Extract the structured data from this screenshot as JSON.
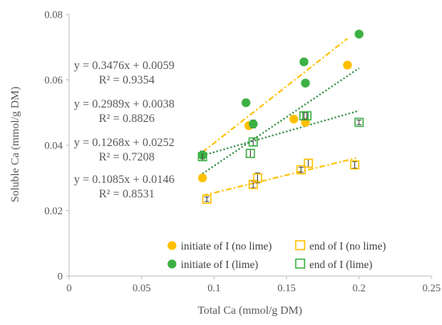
{
  "chart_data": {
    "type": "scatter",
    "xlabel": "Total Ca (mmol/g DM)",
    "ylabel": "Soluble Ca (mmol/g DM)",
    "xlim": [
      0,
      0.25
    ],
    "ylim": [
      0,
      0.08
    ],
    "x_ticks": [
      "0",
      "0.05",
      "0.1",
      "0.15",
      "0.2",
      "0.25"
    ],
    "y_ticks": [
      "0",
      "0.02",
      "0.04",
      "0.06",
      "0.08"
    ],
    "grid": false,
    "legend_position": "bottom-right",
    "colors": {
      "orange": "#FFC000",
      "green": "#3CB043",
      "dark_green": "#2E8B3C",
      "axis": "#BFBFBF",
      "error_bar": "#404040"
    },
    "series": [
      {
        "name": "initiate of I (no lime)",
        "marker": "filled-circle",
        "color": "#FFC000",
        "x": [
          0.092,
          0.124,
          0.155,
          0.163,
          0.192
        ],
        "y": [
          0.03,
          0.046,
          0.048,
          0.047,
          0.0645
        ],
        "trendline": {
          "slope": 0.3476,
          "intercept": 0.0059,
          "x_range": [
            0.092,
            0.192
          ],
          "dash": "dash-dot"
        }
      },
      {
        "name": "end of I (no lime)",
        "marker": "open-square",
        "color": "#FFC000",
        "x": [
          0.095,
          0.127,
          0.13,
          0.16,
          0.165,
          0.197
        ],
        "y": [
          0.0235,
          0.028,
          0.03,
          0.0325,
          0.0345,
          0.034
        ],
        "error": [
          0.0007,
          0.001,
          0.0015,
          0.0008,
          0.0012,
          0.001
        ],
        "trendline": {
          "slope": 0.1085,
          "intercept": 0.0146,
          "x_range": [
            0.092,
            0.198
          ],
          "dash": "dash-dot"
        }
      },
      {
        "name": "initiate of I (lime)",
        "marker": "filled-circle",
        "color": "#3CB043",
        "x": [
          0.092,
          0.122,
          0.127,
          0.162,
          0.163,
          0.2
        ],
        "y": [
          0.037,
          0.053,
          0.0465,
          0.0655,
          0.059,
          0.074
        ],
        "error": [
          0.0012,
          0,
          0.0012,
          0.001,
          0,
          0.0008
        ],
        "trendline": {
          "slope": 0.2989,
          "intercept": 0.0038,
          "x_range": [
            0.092,
            0.2
          ],
          "dash": "dotted"
        }
      },
      {
        "name": "end of I (lime)",
        "marker": "open-square",
        "color": "#3CB043",
        "x": [
          0.092,
          0.125,
          0.127,
          0.162,
          0.164,
          0.2
        ],
        "y": [
          0.0365,
          0.0375,
          0.041,
          0.049,
          0.049,
          0.047
        ],
        "error": [
          0.0012,
          0.0012,
          0.0012,
          0.001,
          0.0012,
          0.0007
        ],
        "trendline": {
          "slope": 0.1268,
          "intercept": 0.0252,
          "x_range": [
            0.092,
            0.2
          ],
          "dash": "dotted"
        }
      }
    ],
    "equations": [
      {
        "eq": "y = 0.3476x + 0.0059",
        "r2": "R² = 0.9354"
      },
      {
        "eq": "y = 0.2989x + 0.0038",
        "r2": "R² = 0.8826"
      },
      {
        "eq": "y = 0.1268x + 0.0252",
        "r2": "R² = 0.7208"
      },
      {
        "eq": "y = 0.1085x + 0.0146",
        "r2": "R² = 0.8531"
      }
    ]
  }
}
